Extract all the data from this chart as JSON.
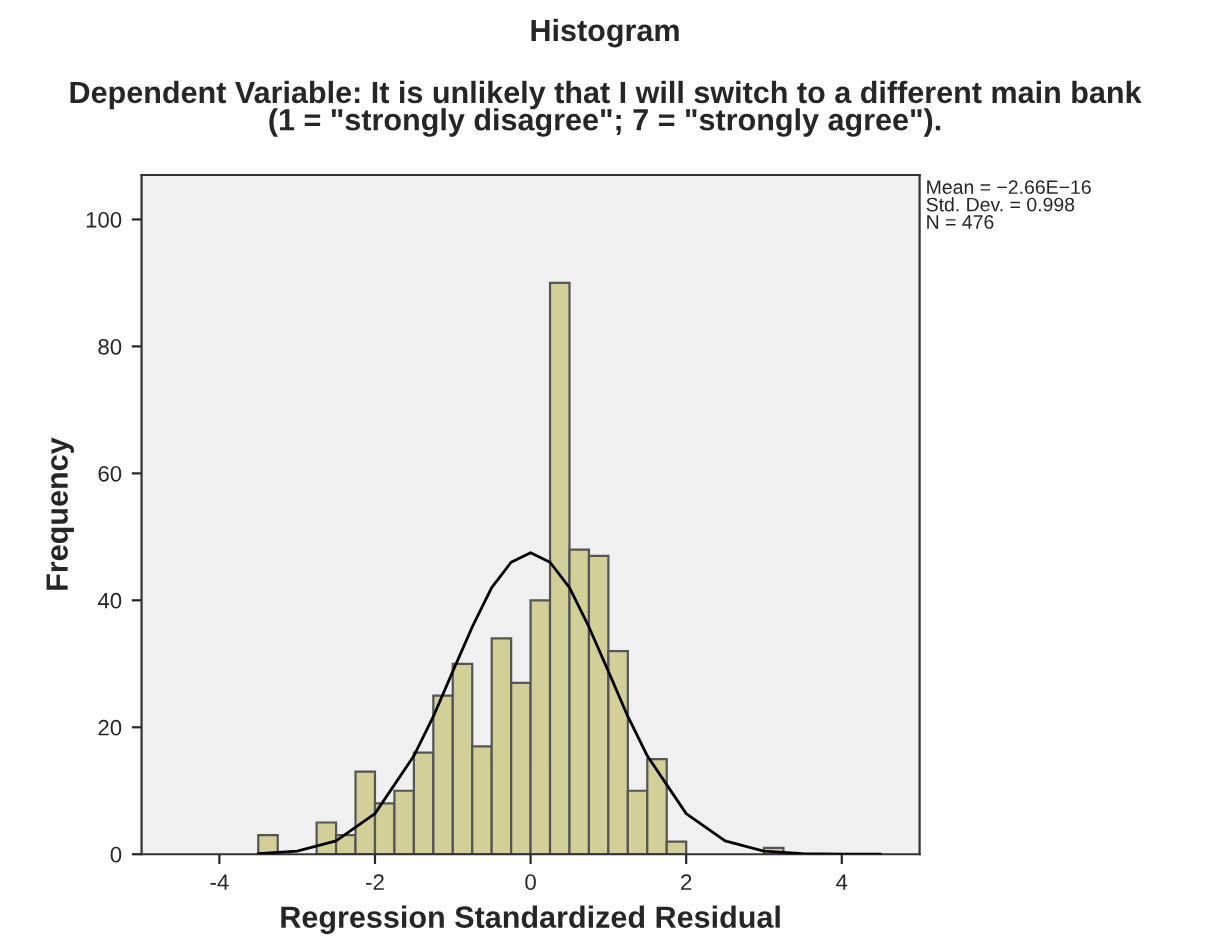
{
  "chart_data": {
    "type": "histogram",
    "title": "Histogram",
    "subtitle": "Dependent Variable: It is unlikely that I will switch to a different main bank\n(1 = \"strongly disagree\"; 7 = \"strongly agree\").",
    "xlabel": "Regression Standardized Residual",
    "ylabel": "Frequency",
    "annotations": [
      "Mean = −2.66E−16\nStd. Dev. = 0.998\nN = 476"
    ],
    "bins": [
      -3.5,
      -3.25,
      -3.0,
      -2.75,
      -2.5,
      -2.25,
      -2.0,
      -1.75,
      -1.5,
      -1.25,
      -1.0,
      -0.75,
      -0.5,
      -0.25,
      0.0,
      0.25,
      0.5,
      0.75,
      1.0,
      1.25,
      1.5,
      1.75,
      2.0,
      2.25,
      2.5,
      2.75,
      3.0,
      3.25
    ],
    "values": [
      3,
      0,
      0,
      5,
      3,
      13,
      8,
      10,
      16,
      25,
      30,
      17,
      34,
      27,
      40,
      90,
      48,
      47,
      32,
      10,
      15,
      2,
      0,
      0,
      0,
      0,
      1
    ],
    "color": "#d3cf98",
    "series": [
      {
        "type": "line",
        "color": "#000000",
        "x": [
          -3.5,
          -3.0,
          -2.5,
          -2.0,
          -1.5,
          -1.25,
          -1.0,
          -0.75,
          -0.5,
          -0.25,
          0.0,
          0.25,
          0.5,
          0.75,
          1.0,
          1.25,
          1.5,
          2.0,
          2.5,
          3.0,
          3.5,
          4.0,
          4.5
        ],
        "values": [
          0.1,
          0.5,
          2.1,
          6.4,
          15.5,
          21.7,
          28.8,
          35.8,
          42,
          46,
          47.5,
          46,
          42,
          35.8,
          28.8,
          21.7,
          15.5,
          6.4,
          2.1,
          0.5,
          0.1,
          0,
          0
        ]
      }
    ],
    "xlim": [
      -5,
      5
    ],
    "ylim": [
      0,
      107
    ],
    "xticks": [
      -4,
      -2,
      0,
      2,
      4
    ],
    "yticks": [
      0,
      20,
      40,
      60,
      80,
      100
    ],
    "grid": false
  }
}
